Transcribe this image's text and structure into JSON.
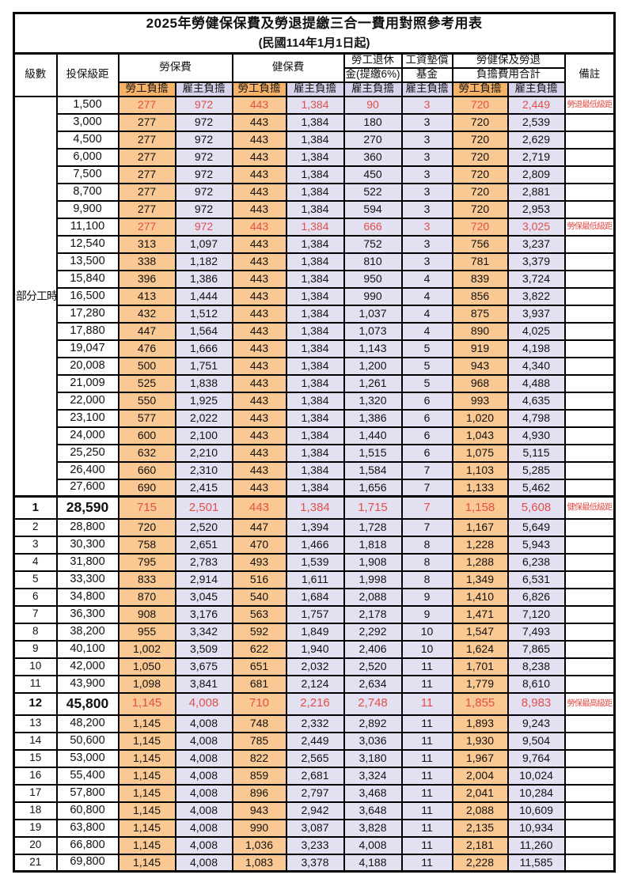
{
  "title": "2025年勞健保保費及勞退提繳三合一費用對照參考用表",
  "subtitle": "(民國114年1月1日起)",
  "header": {
    "level": "級數",
    "bracket": "投保級距",
    "labor_fee": "勞保費",
    "health_fee": "健保費",
    "pension_line1": "勞工退休",
    "pension_line2": "金(提繳6%)",
    "wage_fund_line1": "工資墊償",
    "wage_fund_line2": "基金",
    "total_line1": "勞健保及勞退",
    "total_line2": "負擔費用合計",
    "employee": "勞工負擔",
    "employer": "雇主負擔",
    "remark": "備註"
  },
  "part_time_label": "部分工時",
  "part_time_rowspan": 23,
  "colors": {
    "employee_header_bg": "#f6b267",
    "employee_cell_bg": "#fac892",
    "employer_header_bg": "#d8d3ec",
    "employer_cell_bg": "#e3e0f2",
    "highlight_text": "#e0504b",
    "border": "#000000"
  },
  "remarks": {
    "pension_min": "勞退最低級距",
    "labor_min": "勞保最低級距",
    "health_min": "健保最低級距",
    "labor_max": "勞保最高級距"
  },
  "rows": [
    {
      "level": "",
      "bracket": "1,500",
      "labor_emp": "277",
      "labor_er": "972",
      "health_emp": "443",
      "health_er": "1,384",
      "pension": "90",
      "wage_fund": "3",
      "total_emp": "720",
      "total_er": "2,449",
      "remark": "勞退最低級距",
      "hl": true,
      "emph": false,
      "section": false
    },
    {
      "level": "",
      "bracket": "3,000",
      "labor_emp": "277",
      "labor_er": "972",
      "health_emp": "443",
      "health_er": "1,384",
      "pension": "180",
      "wage_fund": "3",
      "total_emp": "720",
      "total_er": "2,539",
      "remark": "",
      "hl": false,
      "emph": false,
      "section": false
    },
    {
      "level": "",
      "bracket": "4,500",
      "labor_emp": "277",
      "labor_er": "972",
      "health_emp": "443",
      "health_er": "1,384",
      "pension": "270",
      "wage_fund": "3",
      "total_emp": "720",
      "total_er": "2,629",
      "remark": "",
      "hl": false,
      "emph": false,
      "section": false
    },
    {
      "level": "",
      "bracket": "6,000",
      "labor_emp": "277",
      "labor_er": "972",
      "health_emp": "443",
      "health_er": "1,384",
      "pension": "360",
      "wage_fund": "3",
      "total_emp": "720",
      "total_er": "2,719",
      "remark": "",
      "hl": false,
      "emph": false,
      "section": false
    },
    {
      "level": "",
      "bracket": "7,500",
      "labor_emp": "277",
      "labor_er": "972",
      "health_emp": "443",
      "health_er": "1,384",
      "pension": "450",
      "wage_fund": "3",
      "total_emp": "720",
      "total_er": "2,809",
      "remark": "",
      "hl": false,
      "emph": false,
      "section": false
    },
    {
      "level": "",
      "bracket": "8,700",
      "labor_emp": "277",
      "labor_er": "972",
      "health_emp": "443",
      "health_er": "1,384",
      "pension": "522",
      "wage_fund": "3",
      "total_emp": "720",
      "total_er": "2,881",
      "remark": "",
      "hl": false,
      "emph": false,
      "section": false
    },
    {
      "level": "",
      "bracket": "9,900",
      "labor_emp": "277",
      "labor_er": "972",
      "health_emp": "443",
      "health_er": "1,384",
      "pension": "594",
      "wage_fund": "3",
      "total_emp": "720",
      "total_er": "2,953",
      "remark": "",
      "hl": false,
      "emph": false,
      "section": false
    },
    {
      "level": "",
      "bracket": "11,100",
      "labor_emp": "277",
      "labor_er": "972",
      "health_emp": "443",
      "health_er": "1,384",
      "pension": "666",
      "wage_fund": "3",
      "total_emp": "720",
      "total_er": "3,025",
      "remark": "勞保最低級距",
      "hl": true,
      "emph": false,
      "section": false
    },
    {
      "level": "",
      "bracket": "12,540",
      "labor_emp": "313",
      "labor_er": "1,097",
      "health_emp": "443",
      "health_er": "1,384",
      "pension": "752",
      "wage_fund": "3",
      "total_emp": "756",
      "total_er": "3,237",
      "remark": "",
      "hl": false,
      "emph": false,
      "section": false
    },
    {
      "level": "",
      "bracket": "13,500",
      "labor_emp": "338",
      "labor_er": "1,182",
      "health_emp": "443",
      "health_er": "1,384",
      "pension": "810",
      "wage_fund": "3",
      "total_emp": "781",
      "total_er": "3,379",
      "remark": "",
      "hl": false,
      "emph": false,
      "section": false
    },
    {
      "level": "",
      "bracket": "15,840",
      "labor_emp": "396",
      "labor_er": "1,386",
      "health_emp": "443",
      "health_er": "1,384",
      "pension": "950",
      "wage_fund": "4",
      "total_emp": "839",
      "total_er": "3,724",
      "remark": "",
      "hl": false,
      "emph": false,
      "section": false
    },
    {
      "level": "",
      "bracket": "16,500",
      "labor_emp": "413",
      "labor_er": "1,444",
      "health_emp": "443",
      "health_er": "1,384",
      "pension": "990",
      "wage_fund": "4",
      "total_emp": "856",
      "total_er": "3,822",
      "remark": "",
      "hl": false,
      "emph": false,
      "section": false
    },
    {
      "level": "",
      "bracket": "17,280",
      "labor_emp": "432",
      "labor_er": "1,512",
      "health_emp": "443",
      "health_er": "1,384",
      "pension": "1,037",
      "wage_fund": "4",
      "total_emp": "875",
      "total_er": "3,937",
      "remark": "",
      "hl": false,
      "emph": false,
      "section": false
    },
    {
      "level": "",
      "bracket": "17,880",
      "labor_emp": "447",
      "labor_er": "1,564",
      "health_emp": "443",
      "health_er": "1,384",
      "pension": "1,073",
      "wage_fund": "4",
      "total_emp": "890",
      "total_er": "4,025",
      "remark": "",
      "hl": false,
      "emph": false,
      "section": false
    },
    {
      "level": "",
      "bracket": "19,047",
      "labor_emp": "476",
      "labor_er": "1,666",
      "health_emp": "443",
      "health_er": "1,384",
      "pension": "1,143",
      "wage_fund": "5",
      "total_emp": "919",
      "total_er": "4,198",
      "remark": "",
      "hl": false,
      "emph": false,
      "section": false
    },
    {
      "level": "",
      "bracket": "20,008",
      "labor_emp": "500",
      "labor_er": "1,751",
      "health_emp": "443",
      "health_er": "1,384",
      "pension": "1,200",
      "wage_fund": "5",
      "total_emp": "943",
      "total_er": "4,340",
      "remark": "",
      "hl": false,
      "emph": false,
      "section": false
    },
    {
      "level": "",
      "bracket": "21,009",
      "labor_emp": "525",
      "labor_er": "1,838",
      "health_emp": "443",
      "health_er": "1,384",
      "pension": "1,261",
      "wage_fund": "5",
      "total_emp": "968",
      "total_er": "4,488",
      "remark": "",
      "hl": false,
      "emph": false,
      "section": false
    },
    {
      "level": "",
      "bracket": "22,000",
      "labor_emp": "550",
      "labor_er": "1,925",
      "health_emp": "443",
      "health_er": "1,384",
      "pension": "1,320",
      "wage_fund": "6",
      "total_emp": "993",
      "total_er": "4,635",
      "remark": "",
      "hl": false,
      "emph": false,
      "section": false
    },
    {
      "level": "",
      "bracket": "23,100",
      "labor_emp": "577",
      "labor_er": "2,022",
      "health_emp": "443",
      "health_er": "1,384",
      "pension": "1,386",
      "wage_fund": "6",
      "total_emp": "1,020",
      "total_er": "4,798",
      "remark": "",
      "hl": false,
      "emph": false,
      "section": false
    },
    {
      "level": "",
      "bracket": "24,000",
      "labor_emp": "600",
      "labor_er": "2,100",
      "health_emp": "443",
      "health_er": "1,384",
      "pension": "1,440",
      "wage_fund": "6",
      "total_emp": "1,043",
      "total_er": "4,930",
      "remark": "",
      "hl": false,
      "emph": false,
      "section": false
    },
    {
      "level": "",
      "bracket": "25,250",
      "labor_emp": "632",
      "labor_er": "2,210",
      "health_emp": "443",
      "health_er": "1,384",
      "pension": "1,515",
      "wage_fund": "6",
      "total_emp": "1,075",
      "total_er": "5,115",
      "remark": "",
      "hl": false,
      "emph": false,
      "section": false
    },
    {
      "level": "",
      "bracket": "26,400",
      "labor_emp": "660",
      "labor_er": "2,310",
      "health_emp": "443",
      "health_er": "1,384",
      "pension": "1,584",
      "wage_fund": "7",
      "total_emp": "1,103",
      "total_er": "5,285",
      "remark": "",
      "hl": false,
      "emph": false,
      "section": false
    },
    {
      "level": "",
      "bracket": "27,600",
      "labor_emp": "690",
      "labor_er": "2,415",
      "health_emp": "443",
      "health_er": "1,384",
      "pension": "1,656",
      "wage_fund": "7",
      "total_emp": "1,133",
      "total_er": "5,462",
      "remark": "",
      "hl": false,
      "emph": false,
      "section": false
    },
    {
      "level": "1",
      "bracket": "28,590",
      "labor_emp": "715",
      "labor_er": "2,501",
      "health_emp": "443",
      "health_er": "1,384",
      "pension": "1,715",
      "wage_fund": "7",
      "total_emp": "1,158",
      "total_er": "5,608",
      "remark": "健保最低級距",
      "hl": true,
      "emph": true,
      "section": true
    },
    {
      "level": "2",
      "bracket": "28,800",
      "labor_emp": "720",
      "labor_er": "2,520",
      "health_emp": "447",
      "health_er": "1,394",
      "pension": "1,728",
      "wage_fund": "7",
      "total_emp": "1,167",
      "total_er": "5,649",
      "remark": "",
      "hl": false,
      "emph": false,
      "section": false
    },
    {
      "level": "3",
      "bracket": "30,300",
      "labor_emp": "758",
      "labor_er": "2,651",
      "health_emp": "470",
      "health_er": "1,466",
      "pension": "1,818",
      "wage_fund": "8",
      "total_emp": "1,228",
      "total_er": "5,943",
      "remark": "",
      "hl": false,
      "emph": false,
      "section": false
    },
    {
      "level": "4",
      "bracket": "31,800",
      "labor_emp": "795",
      "labor_er": "2,783",
      "health_emp": "493",
      "health_er": "1,539",
      "pension": "1,908",
      "wage_fund": "8",
      "total_emp": "1,288",
      "total_er": "6,238",
      "remark": "",
      "hl": false,
      "emph": false,
      "section": false
    },
    {
      "level": "5",
      "bracket": "33,300",
      "labor_emp": "833",
      "labor_er": "2,914",
      "health_emp": "516",
      "health_er": "1,611",
      "pension": "1,998",
      "wage_fund": "8",
      "total_emp": "1,349",
      "total_er": "6,531",
      "remark": "",
      "hl": false,
      "emph": false,
      "section": false
    },
    {
      "level": "6",
      "bracket": "34,800",
      "labor_emp": "870",
      "labor_er": "3,045",
      "health_emp": "540",
      "health_er": "1,684",
      "pension": "2,088",
      "wage_fund": "9",
      "total_emp": "1,410",
      "total_er": "6,826",
      "remark": "",
      "hl": false,
      "emph": false,
      "section": false
    },
    {
      "level": "7",
      "bracket": "36,300",
      "labor_emp": "908",
      "labor_er": "3,176",
      "health_emp": "563",
      "health_er": "1,757",
      "pension": "2,178",
      "wage_fund": "9",
      "total_emp": "1,471",
      "total_er": "7,120",
      "remark": "",
      "hl": false,
      "emph": false,
      "section": false
    },
    {
      "level": "8",
      "bracket": "38,200",
      "labor_emp": "955",
      "labor_er": "3,342",
      "health_emp": "592",
      "health_er": "1,849",
      "pension": "2,292",
      "wage_fund": "10",
      "total_emp": "1,547",
      "total_er": "7,493",
      "remark": "",
      "hl": false,
      "emph": false,
      "section": false
    },
    {
      "level": "9",
      "bracket": "40,100",
      "labor_emp": "1,002",
      "labor_er": "3,509",
      "health_emp": "622",
      "health_er": "1,940",
      "pension": "2,406",
      "wage_fund": "10",
      "total_emp": "1,624",
      "total_er": "7,865",
      "remark": "",
      "hl": false,
      "emph": false,
      "section": false
    },
    {
      "level": "10",
      "bracket": "42,000",
      "labor_emp": "1,050",
      "labor_er": "3,675",
      "health_emp": "651",
      "health_er": "2,032",
      "pension": "2,520",
      "wage_fund": "11",
      "total_emp": "1,701",
      "total_er": "8,238",
      "remark": "",
      "hl": false,
      "emph": false,
      "section": false
    },
    {
      "level": "11",
      "bracket": "43,900",
      "labor_emp": "1,098",
      "labor_er": "3,841",
      "health_emp": "681",
      "health_er": "2,124",
      "pension": "2,634",
      "wage_fund": "11",
      "total_emp": "1,779",
      "total_er": "8,610",
      "remark": "",
      "hl": false,
      "emph": false,
      "section": false
    },
    {
      "level": "12",
      "bracket": "45,800",
      "labor_emp": "1,145",
      "labor_er": "4,008",
      "health_emp": "710",
      "health_er": "2,216",
      "pension": "2,748",
      "wage_fund": "11",
      "total_emp": "1,855",
      "total_er": "8,983",
      "remark": "勞保最高級距",
      "hl": true,
      "emph": true,
      "section": false
    },
    {
      "level": "13",
      "bracket": "48,200",
      "labor_emp": "1,145",
      "labor_er": "4,008",
      "health_emp": "748",
      "health_er": "2,332",
      "pension": "2,892",
      "wage_fund": "11",
      "total_emp": "1,893",
      "total_er": "9,243",
      "remark": "",
      "hl": false,
      "emph": false,
      "section": false
    },
    {
      "level": "14",
      "bracket": "50,600",
      "labor_emp": "1,145",
      "labor_er": "4,008",
      "health_emp": "785",
      "health_er": "2,449",
      "pension": "3,036",
      "wage_fund": "11",
      "total_emp": "1,930",
      "total_er": "9,504",
      "remark": "",
      "hl": false,
      "emph": false,
      "section": false
    },
    {
      "level": "15",
      "bracket": "53,000",
      "labor_emp": "1,145",
      "labor_er": "4,008",
      "health_emp": "822",
      "health_er": "2,565",
      "pension": "3,180",
      "wage_fund": "11",
      "total_emp": "1,967",
      "total_er": "9,764",
      "remark": "",
      "hl": false,
      "emph": false,
      "section": false
    },
    {
      "level": "16",
      "bracket": "55,400",
      "labor_emp": "1,145",
      "labor_er": "4,008",
      "health_emp": "859",
      "health_er": "2,681",
      "pension": "3,324",
      "wage_fund": "11",
      "total_emp": "2,004",
      "total_er": "10,024",
      "remark": "",
      "hl": false,
      "emph": false,
      "section": false
    },
    {
      "level": "17",
      "bracket": "57,800",
      "labor_emp": "1,145",
      "labor_er": "4,008",
      "health_emp": "896",
      "health_er": "2,797",
      "pension": "3,468",
      "wage_fund": "11",
      "total_emp": "2,041",
      "total_er": "10,284",
      "remark": "",
      "hl": false,
      "emph": false,
      "section": false
    },
    {
      "level": "18",
      "bracket": "60,800",
      "labor_emp": "1,145",
      "labor_er": "4,008",
      "health_emp": "943",
      "health_er": "2,942",
      "pension": "3,648",
      "wage_fund": "11",
      "total_emp": "2,088",
      "total_er": "10,609",
      "remark": "",
      "hl": false,
      "emph": false,
      "section": false
    },
    {
      "level": "19",
      "bracket": "63,800",
      "labor_emp": "1,145",
      "labor_er": "4,008",
      "health_emp": "990",
      "health_er": "3,087",
      "pension": "3,828",
      "wage_fund": "11",
      "total_emp": "2,135",
      "total_er": "10,934",
      "remark": "",
      "hl": false,
      "emph": false,
      "section": false
    },
    {
      "level": "20",
      "bracket": "66,800",
      "labor_emp": "1,145",
      "labor_er": "4,008",
      "health_emp": "1,036",
      "health_er": "3,233",
      "pension": "4,008",
      "wage_fund": "11",
      "total_emp": "2,181",
      "total_er": "11,260",
      "remark": "",
      "hl": false,
      "emph": false,
      "section": false
    },
    {
      "level": "21",
      "bracket": "69,800",
      "labor_emp": "1,145",
      "labor_er": "4,008",
      "health_emp": "1,083",
      "health_er": "3,378",
      "pension": "4,188",
      "wage_fund": "11",
      "total_emp": "2,228",
      "total_er": "11,585",
      "remark": "",
      "hl": false,
      "emph": false,
      "section": false
    }
  ]
}
